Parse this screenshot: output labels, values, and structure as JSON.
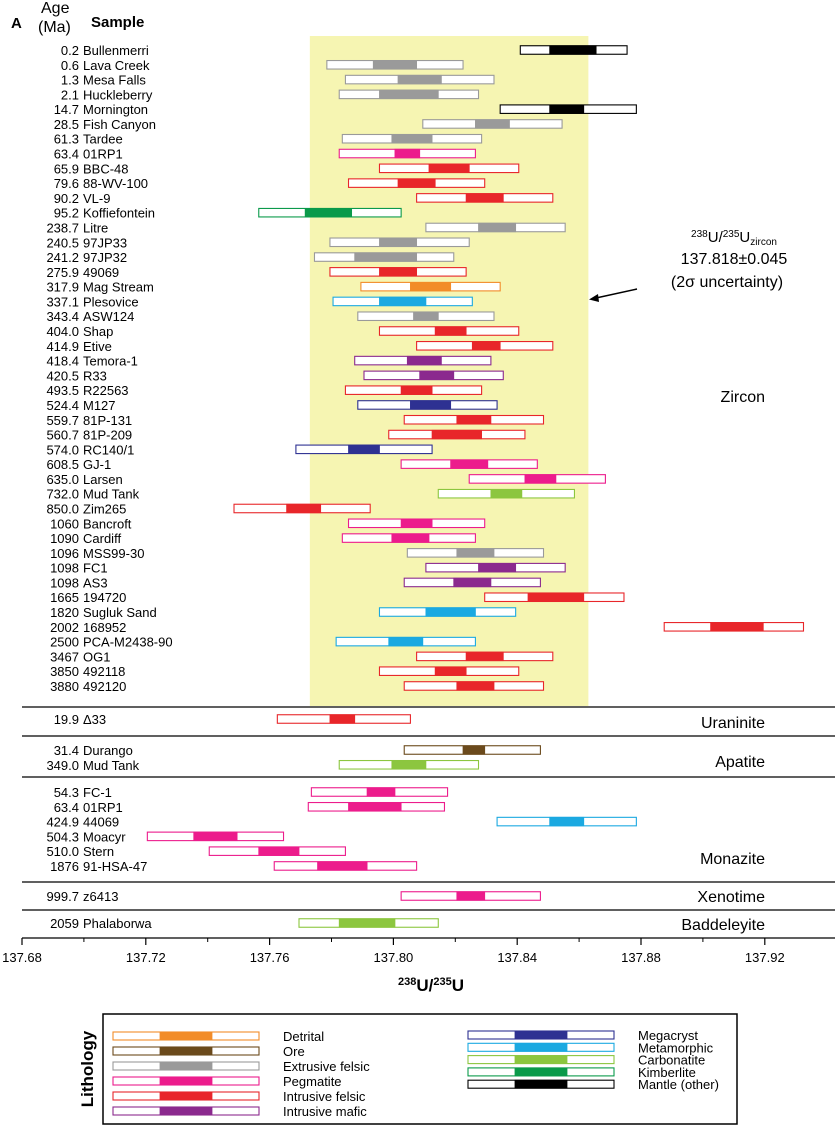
{
  "panel_label": "A",
  "header": {
    "age": "Age",
    "age_unit": "(Ma)",
    "sample": "Sample"
  },
  "annotation": {
    "sup": "238",
    "u1": "U/",
    "sup2": "235",
    "u2": "U",
    "sub": "zircon",
    "value": "137.818±0.045",
    "note": "(2σ uncertainty)"
  },
  "legend_title": "Lithology",
  "colors": {
    "Detrital": "#f28c28",
    "Ore": "#6b4a1c",
    "Extrusive felsic": "#9a9a9a",
    "Pegmatite": "#ec1c8c",
    "Intrusive felsic": "#e8262a",
    "Intrusive mafic": "#8b2a8e",
    "Megacryst": "#2e3192",
    "Metamorphic": "#1ba9e1",
    "Carbonatite": "#8cc63f",
    "Kimberlite": "#0a9a4a",
    "Mantle (other)": "#000000"
  },
  "chart_data": {
    "type": "scatter",
    "xlabel": "238U/235U",
    "xlim": [
      137.68,
      137.94
    ],
    "xticks": [
      "137.68",
      "137.72",
      "137.76",
      "137.80",
      "137.84",
      "137.88",
      "137.92"
    ],
    "reference": {
      "value": 137.818,
      "uncertainty": 0.045
    },
    "legend": {
      "left": [
        "Detrital",
        "Ore",
        "Extrusive felsic",
        "Pegmatite",
        "Intrusive felsic",
        "Intrusive mafic"
      ],
      "right": [
        "Megacryst",
        "Metamorphic",
        "Carbonatite",
        "Kimberlite",
        "Mantle (other)"
      ]
    },
    "groups": [
      {
        "name": "Zircon",
        "samples": [
          {
            "age": "0.2",
            "sample": "Bullenmerri",
            "lithology": "Mantle (other)",
            "value": 137.858,
            "low": 137.841,
            "high": 137.8755,
            "inner_low": 137.8505,
            "inner_high": 137.8655
          },
          {
            "age": "0.6",
            "sample": "Lava Creek",
            "lithology": "Extrusive felsic",
            "value": 137.8005,
            "low": 137.7785,
            "high": 137.8225,
            "inner_low": 137.7935,
            "inner_high": 137.8075
          },
          {
            "age": "1.3",
            "sample": "Mesa Falls",
            "lithology": "Extrusive felsic",
            "value": 137.8085,
            "low": 137.7845,
            "high": 137.8325,
            "inner_low": 137.8015,
            "inner_high": 137.8155
          },
          {
            "age": "2.1",
            "sample": "Huckleberry",
            "lithology": "Extrusive felsic",
            "value": 137.805,
            "low": 137.7825,
            "high": 137.8275,
            "inner_low": 137.7955,
            "inner_high": 137.8145
          },
          {
            "age": "14.7",
            "sample": "Mornington",
            "lithology": "Mantle (other)",
            "value": 137.856,
            "low": 137.8345,
            "high": 137.8785,
            "inner_low": 137.8505,
            "inner_high": 137.8615
          },
          {
            "age": "28.5",
            "sample": "Fish Canyon",
            "lithology": "Extrusive felsic",
            "value": 137.8325,
            "low": 137.8095,
            "high": 137.8545,
            "inner_low": 137.8265,
            "inner_high": 137.8375
          },
          {
            "age": "61.3",
            "sample": "Tardee",
            "lithology": "Extrusive felsic",
            "value": 137.806,
            "low": 137.7835,
            "high": 137.8285,
            "inner_low": 137.7995,
            "inner_high": 137.8125
          },
          {
            "age": "63.4",
            "sample": "01RP1",
            "lithology": "Pegmatite",
            "value": 137.804,
            "low": 137.7825,
            "high": 137.8265,
            "inner_low": 137.8005,
            "inner_high": 137.8085
          },
          {
            "age": "65.9",
            "sample": "BBC-48",
            "lithology": "Intrusive felsic",
            "value": 137.818,
            "low": 137.7955,
            "high": 137.8405,
            "inner_low": 137.8115,
            "inner_high": 137.8245
          },
          {
            "age": "79.6",
            "sample": "88-WV-100",
            "lithology": "Intrusive felsic",
            "value": 137.8075,
            "low": 137.7855,
            "high": 137.8295,
            "inner_low": 137.8015,
            "inner_high": 137.8135
          },
          {
            "age": "90.2",
            "sample": "VL-9",
            "lithology": "Intrusive felsic",
            "value": 137.8295,
            "low": 137.8075,
            "high": 137.8515,
            "inner_low": 137.8235,
            "inner_high": 137.8355
          },
          {
            "age": "95.2",
            "sample": "Koffiefontein",
            "lithology": "Kimberlite",
            "value": 137.7795,
            "low": 137.7565,
            "high": 137.8025,
            "inner_low": 137.7715,
            "inner_high": 137.7865
          },
          {
            "age": "238.7",
            "sample": "Litre",
            "lithology": "Extrusive felsic",
            "value": 137.833,
            "low": 137.8105,
            "high": 137.8555,
            "inner_low": 137.8275,
            "inner_high": 137.8395
          },
          {
            "age": "240.5",
            "sample": "97JP33",
            "lithology": "Extrusive felsic",
            "value": 137.8025,
            "low": 137.7795,
            "high": 137.8245,
            "inner_low": 137.7955,
            "inner_high": 137.8075
          },
          {
            "age": "241.2",
            "sample": "97JP32",
            "lithology": "Extrusive felsic",
            "value": 137.7975,
            "low": 137.7745,
            "high": 137.8195,
            "inner_low": 137.7875,
            "inner_high": 137.8075
          },
          {
            "age": "275.9",
            "sample": "49069",
            "lithology": "Intrusive felsic",
            "value": 137.8015,
            "low": 137.7795,
            "high": 137.8235,
            "inner_low": 137.7955,
            "inner_high": 137.8075
          },
          {
            "age": "317.9",
            "sample": "Mag Stream",
            "lithology": "Detrital",
            "value": 137.8125,
            "low": 137.7895,
            "high": 137.8345,
            "inner_low": 137.8055,
            "inner_high": 137.8185
          },
          {
            "age": "337.1",
            "sample": "Plesovice",
            "lithology": "Metamorphic",
            "value": 137.8035,
            "low": 137.7805,
            "high": 137.8255,
            "inner_low": 137.7955,
            "inner_high": 137.8105
          },
          {
            "age": "343.4",
            "sample": "ASW124",
            "lithology": "Extrusive felsic",
            "value": 137.8105,
            "low": 137.7885,
            "high": 137.8325,
            "inner_low": 137.8065,
            "inner_high": 137.8145
          },
          {
            "age": "404.0",
            "sample": "Shap",
            "lithology": "Intrusive felsic",
            "value": 137.8175,
            "low": 137.7955,
            "high": 137.8405,
            "inner_low": 137.8135,
            "inner_high": 137.8235
          },
          {
            "age": "414.9",
            "sample": "Etive",
            "lithology": "Intrusive felsic",
            "value": 137.8295,
            "low": 137.8075,
            "high": 137.8515,
            "inner_low": 137.8255,
            "inner_high": 137.8345
          },
          {
            "age": "418.4",
            "sample": "Temora-1",
            "lithology": "Intrusive mafic",
            "value": 137.8095,
            "low": 137.7875,
            "high": 137.8315,
            "inner_low": 137.8045,
            "inner_high": 137.8155
          },
          {
            "age": "420.5",
            "sample": "R33",
            "lithology": "Intrusive mafic",
            "value": 137.8135,
            "low": 137.7905,
            "high": 137.8355,
            "inner_low": 137.8085,
            "inner_high": 137.8195
          },
          {
            "age": "493.5",
            "sample": "R22563",
            "lithology": "Intrusive felsic",
            "value": 137.8065,
            "low": 137.7845,
            "high": 137.8285,
            "inner_low": 137.8025,
            "inner_high": 137.8125
          },
          {
            "age": "524.4",
            "sample": "M127",
            "lithology": "Megacryst",
            "value": 137.8115,
            "low": 137.7885,
            "high": 137.8335,
            "inner_low": 137.8055,
            "inner_high": 137.8185
          },
          {
            "age": "559.7",
            "sample": "81P-131",
            "lithology": "Intrusive felsic",
            "value": 137.826,
            "low": 137.8035,
            "high": 137.8485,
            "inner_low": 137.8205,
            "inner_high": 137.8315
          },
          {
            "age": "560.7",
            "sample": "81P-209",
            "lithology": "Intrusive felsic",
            "value": 137.8205,
            "low": 137.7985,
            "high": 137.8425,
            "inner_low": 137.8125,
            "inner_high": 137.8285
          },
          {
            "age": "574.0",
            "sample": "RC140/1",
            "lithology": "Megacryst",
            "value": 137.7905,
            "low": 137.7685,
            "high": 137.8125,
            "inner_low": 137.7855,
            "inner_high": 137.7955
          },
          {
            "age": "608.5",
            "sample": "GJ-1",
            "lithology": "Pegmatite",
            "value": 137.8245,
            "low": 137.8025,
            "high": 137.8465,
            "inner_low": 137.8185,
            "inner_high": 137.8305
          },
          {
            "age": "635.0",
            "sample": "Larsen",
            "lithology": "Pegmatite",
            "value": 137.8465,
            "low": 137.8245,
            "high": 137.8685,
            "inner_low": 137.8425,
            "inner_high": 137.8525
          },
          {
            "age": "732.0",
            "sample": "Mud Tank",
            "lithology": "Carbonatite",
            "value": 137.8365,
            "low": 137.8145,
            "high": 137.8585,
            "inner_low": 137.8315,
            "inner_high": 137.8415
          },
          {
            "age": "850.0",
            "sample": "Zim265",
            "lithology": "Intrusive felsic",
            "value": 137.771,
            "low": 137.7485,
            "high": 137.7925,
            "inner_low": 137.7655,
            "inner_high": 137.7765
          },
          {
            "age": "1060",
            "sample": "Bancroft",
            "lithology": "Pegmatite",
            "value": 137.8075,
            "low": 137.7855,
            "high": 137.8295,
            "inner_low": 137.8025,
            "inner_high": 137.8125
          },
          {
            "age": "1090",
            "sample": "Cardiff",
            "lithology": "Pegmatite",
            "value": 137.805,
            "low": 137.7835,
            "high": 137.8265,
            "inner_low": 137.7995,
            "inner_high": 137.8115
          },
          {
            "age": "1096",
            "sample": "MSS99-30",
            "lithology": "Extrusive felsic",
            "value": 137.8265,
            "low": 137.8045,
            "high": 137.8485,
            "inner_low": 137.8205,
            "inner_high": 137.8325
          },
          {
            "age": "1098",
            "sample": "FC1",
            "lithology": "Intrusive mafic",
            "value": 137.8335,
            "low": 137.8105,
            "high": 137.8555,
            "inner_low": 137.8275,
            "inner_high": 137.8395
          },
          {
            "age": "1098",
            "sample": "AS3",
            "lithology": "Intrusive mafic",
            "value": 137.8255,
            "low": 137.8035,
            "high": 137.8475,
            "inner_low": 137.8195,
            "inner_high": 137.8315
          },
          {
            "age": "1665",
            "sample": "194720",
            "lithology": "Intrusive felsic",
            "value": 137.8515,
            "low": 137.8295,
            "high": 137.8745,
            "inner_low": 137.8435,
            "inner_high": 137.8615
          },
          {
            "age": "1820",
            "sample": "Sugluk Sand",
            "lithology": "Metamorphic",
            "value": 137.8175,
            "low": 137.7955,
            "high": 137.8395,
            "inner_low": 137.8105,
            "inner_high": 137.8265
          },
          {
            "age": "2002",
            "sample": "168952",
            "lithology": "Intrusive felsic",
            "value": 137.9105,
            "low": 137.8875,
            "high": 137.9325,
            "inner_low": 137.9025,
            "inner_high": 137.9195
          },
          {
            "age": "2500",
            "sample": "PCA-M2438-90",
            "lithology": "Metamorphic",
            "value": 137.804,
            "low": 137.7815,
            "high": 137.8265,
            "inner_low": 137.7985,
            "inner_high": 137.8095
          },
          {
            "age": "3467",
            "sample": "OG1",
            "lithology": "Intrusive felsic",
            "value": 137.8295,
            "low": 137.8075,
            "high": 137.8515,
            "inner_low": 137.8235,
            "inner_high": 137.8355
          },
          {
            "age": "3850",
            "sample": "492118",
            "lithology": "Intrusive felsic",
            "value": 137.818,
            "low": 137.7955,
            "high": 137.8405,
            "inner_low": 137.8135,
            "inner_high": 137.8235
          },
          {
            "age": "3880",
            "sample": "492120",
            "lithology": "Intrusive felsic",
            "value": 137.8255,
            "low": 137.8035,
            "high": 137.8485,
            "inner_low": 137.8205,
            "inner_high": 137.8325
          }
        ]
      },
      {
        "name": "Uraninite",
        "samples": [
          {
            "age": "19.9",
            "sample": "Δ33",
            "lithology": "Intrusive felsic",
            "value": 137.7835,
            "low": 137.7625,
            "high": 137.8055,
            "inner_low": 137.7795,
            "inner_high": 137.7875
          }
        ]
      },
      {
        "name": "Apatite",
        "samples": [
          {
            "age": "31.4",
            "sample": "Durango",
            "lithology": "Ore",
            "value": 137.8255,
            "low": 137.8035,
            "high": 137.8475,
            "inner_low": 137.8225,
            "inner_high": 137.8295
          },
          {
            "age": "349.0",
            "sample": "Mud Tank",
            "lithology": "Carbonatite",
            "value": 137.805,
            "low": 137.7825,
            "high": 137.8275,
            "inner_low": 137.7995,
            "inner_high": 137.8105
          }
        ]
      },
      {
        "name": "Monazite",
        "samples": [
          {
            "age": "54.3",
            "sample": "FC-1",
            "lithology": "Pegmatite",
            "value": 137.7955,
            "low": 137.7735,
            "high": 137.8175,
            "inner_low": 137.7915,
            "inner_high": 137.8005
          },
          {
            "age": "63.4",
            "sample": "01RP1",
            "lithology": "Pegmatite",
            "value": 137.794,
            "low": 137.7725,
            "high": 137.8165,
            "inner_low": 137.7855,
            "inner_high": 137.8025
          },
          {
            "age": "424.9",
            "sample": "44069",
            "lithology": "Metamorphic",
            "value": 137.856,
            "low": 137.8335,
            "high": 137.8785,
            "inner_low": 137.8505,
            "inner_high": 137.8615
          },
          {
            "age": "504.3",
            "sample": "Moacyr",
            "lithology": "Pegmatite",
            "value": 137.7425,
            "low": 137.7205,
            "high": 137.7645,
            "inner_low": 137.7355,
            "inner_high": 137.7495
          },
          {
            "age": "510.0",
            "sample": "Stern",
            "lithology": "Pegmatite",
            "value": 137.7625,
            "low": 137.7405,
            "high": 137.7845,
            "inner_low": 137.7565,
            "inner_high": 137.7695
          },
          {
            "age": "1876",
            "sample": "91-HSA-47",
            "lithology": "Pegmatite",
            "value": 137.7835,
            "low": 137.7615,
            "high": 137.8075,
            "inner_low": 137.7755,
            "inner_high": 137.7915
          }
        ]
      },
      {
        "name": "Xenotime",
        "samples": [
          {
            "age": "999.7",
            "sample": "z6413",
            "lithology": "Pegmatite",
            "value": 137.825,
            "low": 137.8025,
            "high": 137.8475,
            "inner_low": 137.8205,
            "inner_high": 137.8295
          }
        ]
      },
      {
        "name": "Baddeleyite",
        "samples": [
          {
            "age": "2059",
            "sample": "Phalaborwa",
            "lithology": "Carbonatite",
            "value": 137.7915,
            "low": 137.7695,
            "high": 137.8145,
            "inner_low": 137.7825,
            "inner_high": 137.8005
          }
        ]
      }
    ]
  }
}
